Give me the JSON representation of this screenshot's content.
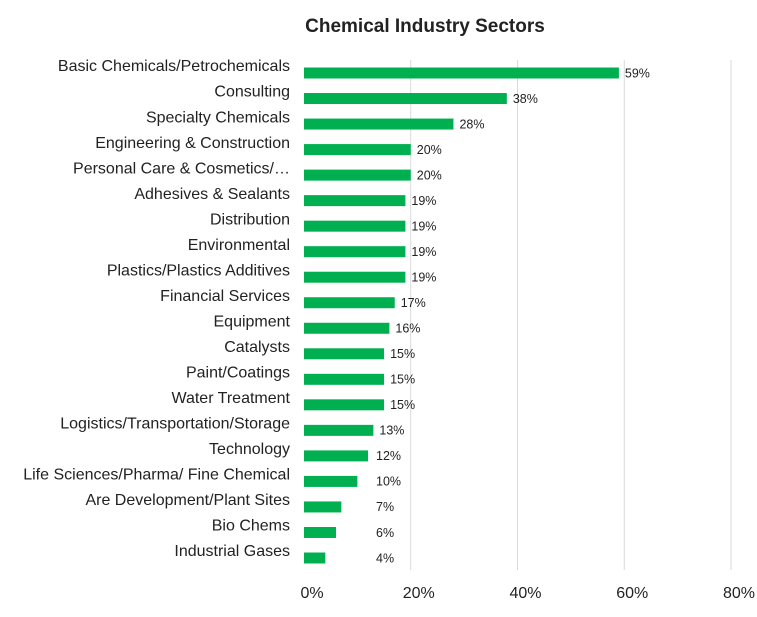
{
  "chart_data": {
    "type": "barh",
    "title": "Chemical Industry Sectors",
    "categories": [
      "Basic Chemicals/Petrochemicals",
      "Consulting",
      "Specialty Chemicals",
      "Engineering & Construction",
      "Personal Care & Cosmetics/…",
      "Adhesives & Sealants",
      "Distribution",
      "Environmental",
      "Plastics/Plastics Additives",
      "Financial Services",
      "Equipment",
      "Catalysts",
      "Paint/Coatings",
      "Water Treatment",
      "Logistics/Transportation/Storage",
      "Technology",
      "Life Sciences/Pharma/ Fine Chemical",
      "Are Development/Plant Sites",
      "Bio Chems",
      "Industrial Gases"
    ],
    "values": [
      59,
      38,
      28,
      20,
      20,
      19,
      19,
      19,
      19,
      17,
      16,
      15,
      15,
      15,
      13,
      12,
      10,
      7,
      6,
      4
    ],
    "value_labels": [
      "59%",
      "38%",
      "28%",
      "20%",
      "20%",
      "19%",
      "19%",
      "19%",
      "19%",
      "17%",
      "16%",
      "15%",
      "15%",
      "15%",
      "13%",
      "12%",
      "10%",
      "7%",
      "6%",
      "4%"
    ],
    "color": "#00b050",
    "xlim": [
      0,
      80
    ],
    "xticks": [
      {
        "value": 0,
        "label": "0%"
      },
      {
        "value": 20,
        "label": "20%"
      },
      {
        "value": 40,
        "label": "40%"
      },
      {
        "value": 60,
        "label": "60%"
      },
      {
        "value": 80,
        "label": "80%"
      }
    ],
    "grid": true
  }
}
